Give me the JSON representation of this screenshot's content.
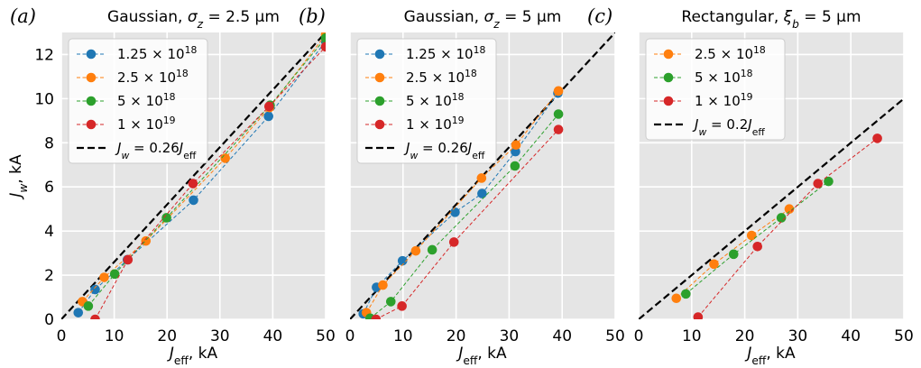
{
  "chart_data": [
    {
      "type": "line",
      "panel_label": "(a)",
      "title": "Gaussian, σz = 2.5 µm",
      "xlabel": "Jeff, kA",
      "ylabel": "Jw, kA",
      "xlim": [
        0,
        50
      ],
      "ylim": [
        0,
        13
      ],
      "xticks": [
        "0",
        "10",
        "20",
        "30",
        "40",
        "50"
      ],
      "yticks": [
        "0",
        "2",
        "4",
        "6",
        "8",
        "10",
        "12"
      ],
      "grid": true,
      "legend_position": "top-left",
      "series": [
        {
          "name": "1.25 × 10^18",
          "color": "#1f77b4",
          "x": [
            3.2,
            6.4,
            12.5,
            25,
            39.2,
            50
          ],
          "y": [
            0.3,
            1.35,
            2.7,
            5.4,
            9.2,
            12.6
          ]
        },
        {
          "name": "2.5 × 10^18",
          "color": "#ff7f0e",
          "x": [
            4.0,
            8.1,
            16,
            31,
            39.4,
            50
          ],
          "y": [
            0.8,
            1.9,
            3.55,
            7.3,
            9.6,
            12.9
          ]
        },
        {
          "name": "5 × 10^18",
          "color": "#2ca02c",
          "x": [
            5.1,
            10.1,
            19.9,
            39.5,
            50
          ],
          "y": [
            0.6,
            2.05,
            4.6,
            9.7,
            12.75
          ]
        },
        {
          "name": "1 × 10^19",
          "color": "#d62728",
          "x": [
            6.4,
            12.6,
            24.9,
            39.3,
            50
          ],
          "y": [
            0.0,
            2.7,
            6.15,
            9.65,
            12.35
          ]
        }
      ],
      "reference_line": {
        "name": "Jw = 0.26Jeff",
        "slope": 0.26,
        "color": "#000000",
        "style": "dashed"
      }
    },
    {
      "type": "line",
      "panel_label": "(b)",
      "title": "Gaussian, σz = 5 µm",
      "xlabel": "Jeff, kA",
      "ylabel": "",
      "xlim": [
        0,
        50
      ],
      "ylim": [
        0,
        13
      ],
      "xticks": [
        "0",
        "10",
        "20",
        "30",
        "40",
        "50"
      ],
      "yticks": [],
      "grid": true,
      "legend_position": "top-left",
      "series": [
        {
          "name": "1.25 × 10^18",
          "color": "#1f77b4",
          "x": [
            2.5,
            5,
            9.9,
            19.8,
            24.9,
            31.2,
            39.2
          ],
          "y": [
            0.25,
            1.45,
            2.65,
            4.85,
            5.7,
            7.6,
            10.25
          ]
        },
        {
          "name": "2.5 × 10^18",
          "color": "#ff7f0e",
          "x": [
            3.1,
            6.2,
            12.4,
            24.8,
            31.3,
            39.3
          ],
          "y": [
            0.3,
            1.55,
            3.1,
            6.4,
            7.9,
            10.35
          ]
        },
        {
          "name": "5 × 10^18",
          "color": "#2ca02c",
          "x": [
            3.8,
            7.7,
            15.5,
            31.1,
            39.3
          ],
          "y": [
            0.05,
            0.8,
            3.15,
            6.95,
            9.3
          ]
        },
        {
          "name": "1 × 10^19",
          "color": "#d62728",
          "x": [
            4.9,
            9.8,
            19.6,
            39.3
          ],
          "y": [
            0.0,
            0.6,
            3.5,
            8.6
          ]
        }
      ],
      "reference_line": {
        "name": "Jw = 0.26Jeff",
        "slope": 0.26,
        "color": "#000000",
        "style": "dashed"
      }
    },
    {
      "type": "line",
      "panel_label": "(c)",
      "title": "Rectangular, ξb = 5 µm",
      "xlabel": "Jeff, kA",
      "ylabel": "",
      "xlim": [
        0,
        50
      ],
      "ylim": [
        0,
        13
      ],
      "xticks": [
        "0",
        "10",
        "20",
        "30",
        "40",
        "50"
      ],
      "yticks": [],
      "grid": true,
      "legend_position": "top-left",
      "series": [
        {
          "name": "2.5 × 10^18",
          "color": "#ff7f0e",
          "x": [
            7.1,
            14.2,
            21.3,
            28.4
          ],
          "y": [
            0.95,
            2.5,
            3.8,
            5.0
          ]
        },
        {
          "name": "5 × 10^18",
          "color": "#2ca02c",
          "x": [
            8.9,
            17.9,
            26.9,
            35.8
          ],
          "y": [
            1.15,
            2.95,
            4.6,
            6.25
          ]
        },
        {
          "name": "1 × 10^19",
          "color": "#d62728",
          "x": [
            11.2,
            22.4,
            33.8,
            45
          ],
          "y": [
            0.1,
            3.3,
            6.15,
            8.2
          ]
        }
      ],
      "reference_line": {
        "name": "Jw = 0.2Jeff",
        "slope": 0.2,
        "color": "#000000",
        "style": "dashed"
      }
    }
  ]
}
